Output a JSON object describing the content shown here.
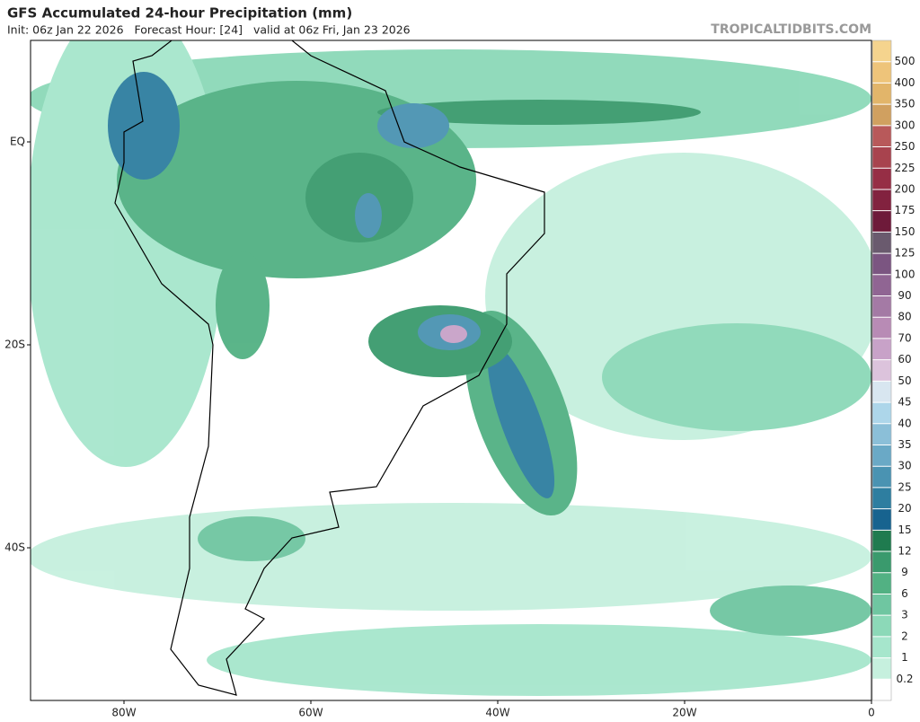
{
  "header": {
    "title": "GFS Accumulated 24-hour Precipitation (mm)",
    "subtitle": "Init: 06z Jan 22 2026   Forecast Hour: [24]   valid at 06z Fri, Jan 23 2026",
    "site": "TROPICALTIDBITS.COM"
  },
  "map": {
    "lat_ticks": [
      {
        "value": 0,
        "label": "EQ"
      },
      {
        "value": -20,
        "label": "20S"
      },
      {
        "value": -40,
        "label": "40S"
      }
    ],
    "lon_ticks": [
      {
        "value": -80,
        "label": "80W"
      },
      {
        "value": -60,
        "label": "60W"
      },
      {
        "value": -40,
        "label": "40W"
      },
      {
        "value": -20,
        "label": "20W"
      },
      {
        "value": 0,
        "label": "0"
      }
    ]
  },
  "colorbar": {
    "levels": [
      0.2,
      1,
      2,
      3,
      6,
      9,
      12,
      15,
      20,
      25,
      30,
      35,
      40,
      45,
      50,
      60,
      70,
      80,
      90,
      100,
      125,
      150,
      175,
      200,
      225,
      250,
      300,
      350,
      400,
      500
    ],
    "colors": [
      "#ffffff",
      "#c6f0de",
      "#a6e6cc",
      "#8cd9b8",
      "#6fc6a1",
      "#52b183",
      "#3a9a6d",
      "#1f7b4f",
      "#17638f",
      "#2e7ea0",
      "#4a93b2",
      "#6aa9c6",
      "#8bbfd8",
      "#add6ea",
      "#d8e6f0",
      "#dcc3dc",
      "#c8a2c8",
      "#b88bb5",
      "#a47aa5",
      "#906593",
      "#7b5581",
      "#6a5a6e",
      "#6e1a3a",
      "#82223f",
      "#962e45",
      "#a8434e",
      "#b8595a",
      "#d0a060",
      "#e2b56a",
      "#eec47a",
      "#f5d48e"
    ]
  }
}
